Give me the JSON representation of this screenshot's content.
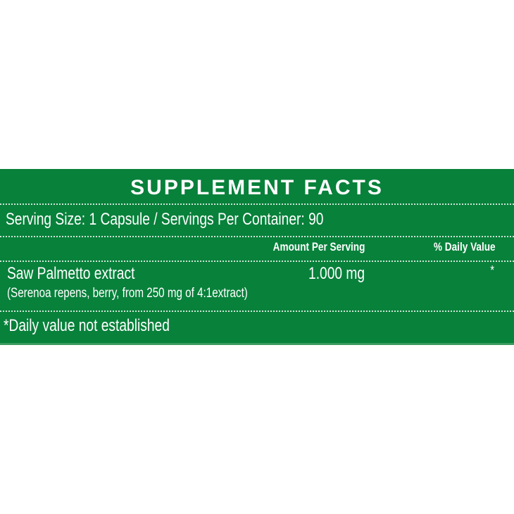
{
  "colors": {
    "panel_green": "#08813b",
    "text": "#ffffff"
  },
  "title": "SUPPLEMENT FACTS",
  "serving_line": "Serving Size: 1 Capsule / Servings Per Container: 90",
  "headers": {
    "amount": "Amount Per Serving",
    "daily_value": "% Daily Value"
  },
  "ingredients": [
    {
      "name": "Saw Palmetto extract",
      "detail": "(Serenoa repens, berry, from 250 mg of 4:1extract)",
      "amount": "1.000 mg",
      "daily_value": "*"
    }
  ],
  "footnote": "*Daily value not established"
}
